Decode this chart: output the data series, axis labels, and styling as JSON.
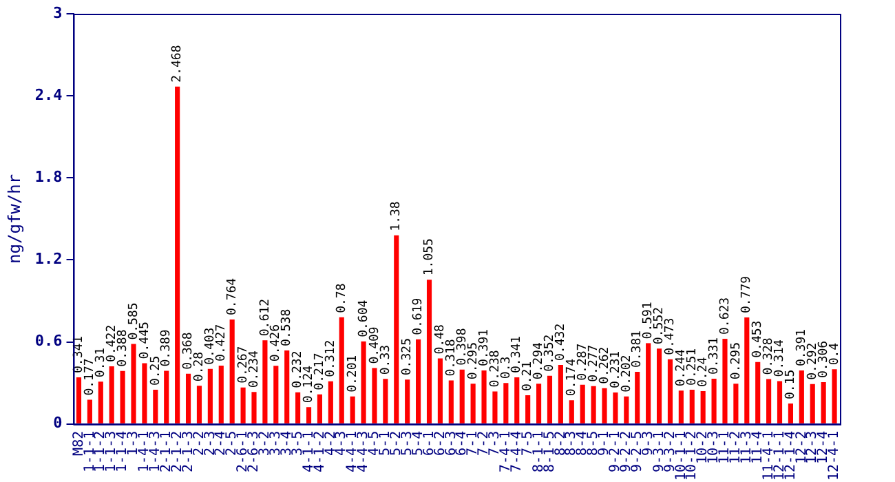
{
  "chart_data": {
    "type": "bar",
    "ylabel": "ng/gfw/hr",
    "categories": [
      "M82",
      "1-1-1",
      "1-1-2",
      "1-1-3",
      "1-1-4",
      "1-3",
      "1-4-1",
      "1-4-3",
      "2-1-1",
      "2-1-2",
      "2-1-3",
      "2-2",
      "2-3",
      "2-4",
      "2-5",
      "2-6-1",
      "2-6-3",
      "3-2",
      "3-3",
      "3-4",
      "3-5",
      "4-1-1",
      "4-1-2",
      "4-2",
      "4-3",
      "4-4-1",
      "4-4-3",
      "4-5",
      "5-1",
      "5-2",
      "5-3",
      "5-4",
      "6-1",
      "6-2",
      "6-3",
      "6-4",
      "7-1",
      "7-2",
      "7-3",
      "7-4-1",
      "7-4-4",
      "7-5",
      "8-1-1",
      "8-1-5",
      "8-2",
      "8-3",
      "8-4",
      "8-5",
      "9-1",
      "9-2-1",
      "9-2-2",
      "9-2-5",
      "9-3",
      "9-3-1",
      "9-3-2",
      "10-1-1",
      "10-1-2",
      "10-2",
      "10-3",
      "11-1",
      "11-2",
      "11-3",
      "11-4",
      "11-4-1",
      "12-1-1",
      "12-1-4",
      "12-2",
      "12-3",
      "12-4",
      "12-4-1"
    ],
    "values": [
      0.341,
      0.177,
      0.31,
      0.422,
      0.388,
      0.585,
      0.445,
      0.25,
      0.389,
      2.468,
      0.368,
      0.28,
      0.403,
      0.427,
      0.764,
      0.267,
      0.234,
      0.612,
      0.426,
      0.538,
      0.232,
      0.124,
      0.217,
      0.312,
      0.78,
      0.201,
      0.604,
      0.409,
      0.33,
      1.38,
      0.325,
      0.619,
      1.055,
      0.48,
      0.318,
      0.398,
      0.295,
      0.391,
      0.238,
      0.3,
      0.341,
      0.21,
      0.294,
      0.352,
      0.432,
      0.174,
      0.287,
      0.277,
      0.262,
      0.231,
      0.202,
      0.381,
      0.591,
      0.552,
      0.473,
      0.244,
      0.251,
      0.24,
      0.331,
      0.623,
      0.295,
      0.779,
      0.453,
      0.328,
      0.314,
      0.15,
      0.391,
      0.292,
      0.306,
      0.4
    ],
    "color": "#ff0000",
    "ylim": [
      0,
      3
    ],
    "yticks": [
      0,
      0.6,
      1.2,
      1.8,
      2.4,
      3
    ],
    "grid": false,
    "legend": false,
    "data_labels": true
  }
}
